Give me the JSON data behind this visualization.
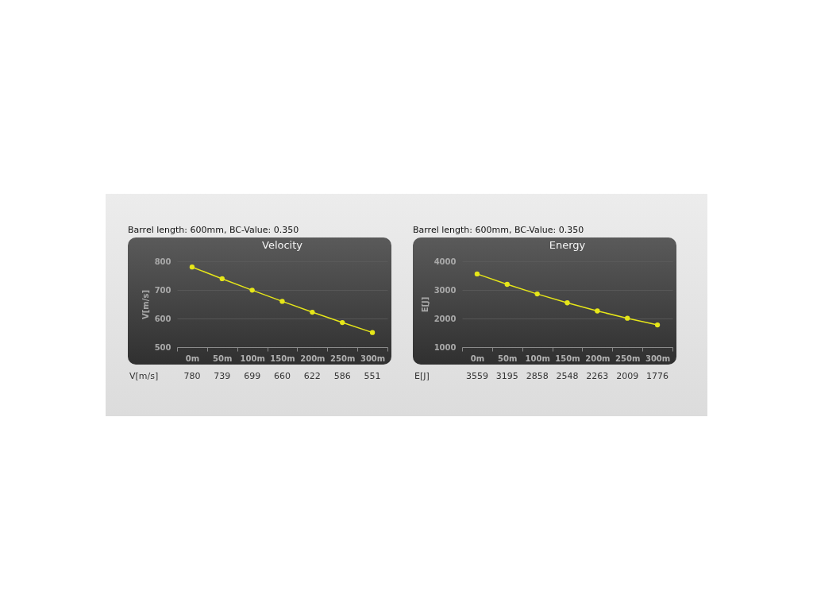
{
  "chart_data": [
    {
      "type": "line",
      "title": "Velocity",
      "subtitle": "Barrel length: 600mm, BC-Value: 0.350",
      "ylabel": "V[m/s]",
      "categories": [
        "0m",
        "50m",
        "100m",
        "150m",
        "200m",
        "250m",
        "300m"
      ],
      "series": [
        {
          "color": "#e6e619",
          "values": [
            780,
            739,
            699,
            660,
            622,
            586,
            551
          ]
        }
      ],
      "ylim": [
        500,
        800
      ],
      "yticks": [
        500,
        600,
        700,
        800
      ],
      "grid": "y",
      "marker": "circle",
      "data_labels": true,
      "annotations": [
        "V[m/s]"
      ]
    },
    {
      "type": "line",
      "title": "Energy",
      "subtitle": "Barrel length: 600mm, BC-Value: 0.350",
      "ylabel": "E[J]",
      "categories": [
        "0m",
        "50m",
        "100m",
        "150m",
        "200m",
        "250m",
        "300m"
      ],
      "series": [
        {
          "color": "#e6e619",
          "values": [
            3559,
            3195,
            2858,
            2548,
            2263,
            2009,
            1776
          ]
        }
      ],
      "ylim": [
        1000,
        4000
      ],
      "yticks": [
        1000,
        2000,
        3000,
        4000
      ],
      "grid": "y",
      "marker": "circle",
      "data_labels": true,
      "annotations": [
        "E[J]"
      ]
    }
  ]
}
